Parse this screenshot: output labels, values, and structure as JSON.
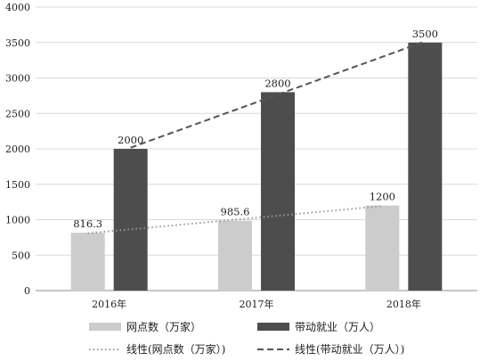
{
  "chart_data": {
    "type": "bar",
    "categories": [
      "2016年",
      "2017年",
      "2018年"
    ],
    "ylim": [
      0,
      4000
    ],
    "yticks": [
      0,
      500,
      1000,
      1500,
      2000,
      2500,
      3000,
      3500,
      4000
    ],
    "grid": true,
    "legend_position": "bottom",
    "series": [
      {
        "name": "网点数（万家）",
        "values": [
          816.3,
          985.6,
          1200
        ],
        "labels": [
          "816.3",
          "985.6",
          "1200"
        ],
        "color": "#cccccc"
      },
      {
        "name": "带动就业（万人）",
        "values": [
          2000,
          2800,
          3500
        ],
        "labels": [
          "2000",
          "2800",
          "3500"
        ],
        "color": "#4d4d4d"
      }
    ],
    "trendlines": [
      {
        "name": "线性(网点数（万家）)",
        "series_index": 0,
        "style": "dotted",
        "color": "#999999"
      },
      {
        "name": "线性(带动就业（万人）)",
        "series_index": 1,
        "style": "dashed",
        "color": "#555555"
      }
    ]
  }
}
